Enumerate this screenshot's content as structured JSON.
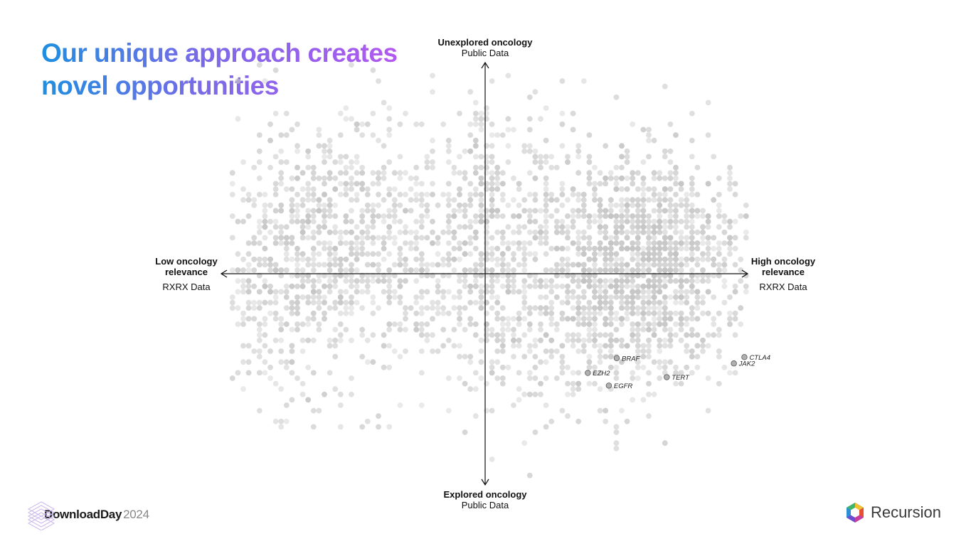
{
  "slide": {
    "title_line1": "Our unique approach creates",
    "title_line2": "novel opportunities"
  },
  "axes": {
    "top_bold": "Unexplored oncology",
    "top_sub": "Public Data",
    "bottom_bold": "Explored oncology",
    "bottom_sub": "Public Data",
    "left_bold_1": "Low oncology",
    "left_bold_2": "relevance",
    "left_sub": "RXRX Data",
    "right_bold_1": "High oncology",
    "right_bold_2": "relevance",
    "right_sub": "RXRX Data"
  },
  "footer": {
    "event_name": "DownloadDay",
    "event_year": "2024",
    "company": "Recursion"
  },
  "colors": {
    "title_gradient_start": "#1e8fe0",
    "title_gradient_end": "#b259f0",
    "point": "#c4c4c4",
    "highlight_point": "#b0b0b0"
  },
  "chart_data": {
    "type": "scatter",
    "xlim": [
      -1,
      1
    ],
    "ylim": [
      -1,
      1
    ],
    "grid": false,
    "legend": "none",
    "highlighted_points": [
      {
        "label": "CTLA4",
        "x": 0.985,
        "y": -0.395
      },
      {
        "label": "JAK2",
        "x": 0.945,
        "y": -0.425
      },
      {
        "label": "BRAF",
        "x": 0.5,
        "y": -0.4
      },
      {
        "label": "EZH2",
        "x": 0.39,
        "y": -0.47
      },
      {
        "label": "TERT",
        "x": 0.69,
        "y": -0.49
      },
      {
        "label": "EGFR",
        "x": 0.47,
        "y": -0.53
      }
    ],
    "background_clusters": [
      {
        "x": -0.52,
        "y": 0.12,
        "sx": 0.28,
        "sy": 0.32,
        "n": 900
      },
      {
        "x": -0.78,
        "y": 0.0,
        "sx": 0.1,
        "sy": 0.3,
        "n": 160
      },
      {
        "x": -0.05,
        "y": 0.1,
        "sx": 0.09,
        "sy": 0.3,
        "n": 200
      },
      {
        "x": 0.02,
        "y": 0.25,
        "sx": 0.03,
        "sy": 0.28,
        "n": 90
      },
      {
        "x": 0.22,
        "y": 0.35,
        "sx": 0.09,
        "sy": 0.28,
        "n": 120
      },
      {
        "x": 0.58,
        "y": 0.05,
        "sx": 0.18,
        "sy": 0.22,
        "n": 850
      },
      {
        "x": 0.62,
        "y": 0.25,
        "sx": 0.2,
        "sy": 0.22,
        "n": 320
      },
      {
        "x": 0.55,
        "y": -0.22,
        "sx": 0.26,
        "sy": 0.18,
        "n": 260
      },
      {
        "x": 0.3,
        "y": -0.35,
        "sx": 0.2,
        "sy": 0.22,
        "n": 120
      },
      {
        "x": 0.0,
        "y": -0.15,
        "sx": 0.5,
        "sy": 0.3,
        "n": 150
      }
    ]
  }
}
